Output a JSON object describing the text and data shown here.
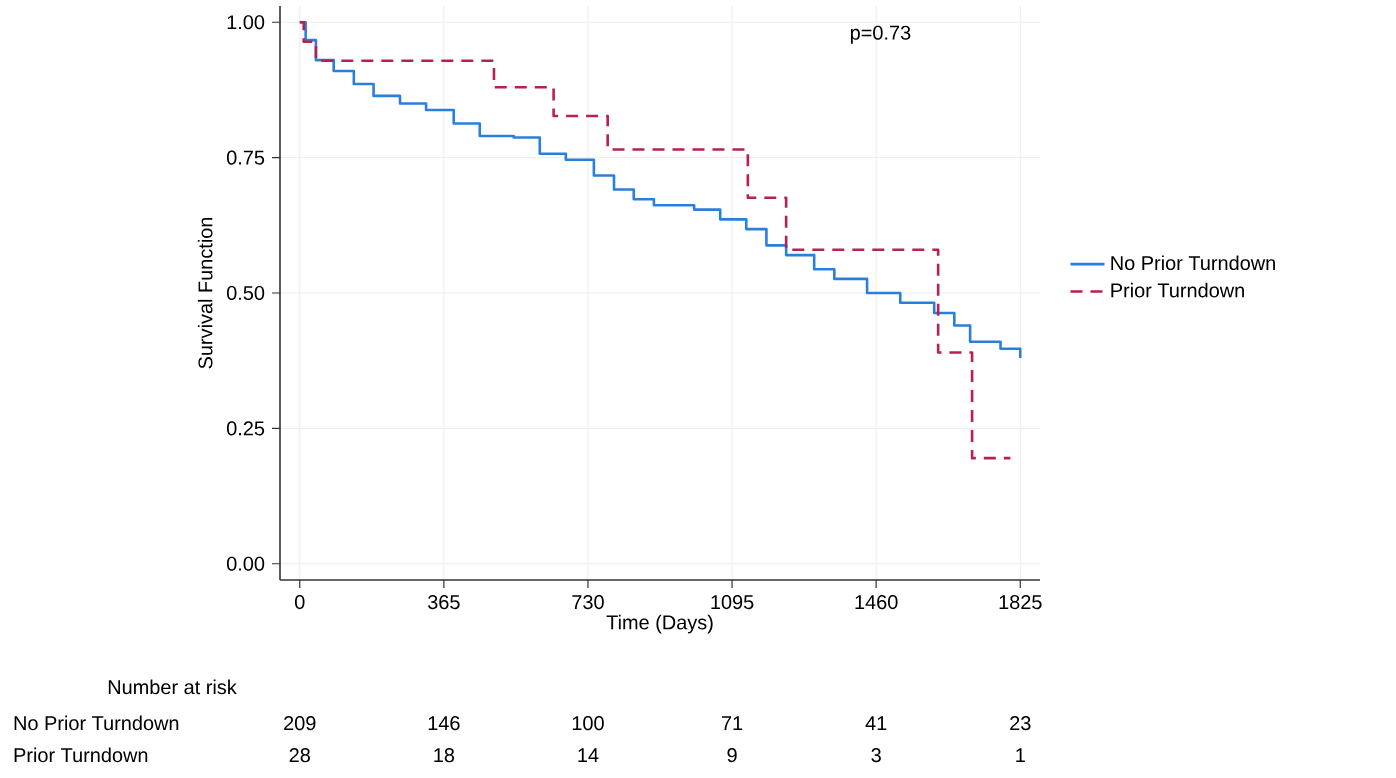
{
  "chart_data": {
    "type": "step",
    "xlabel": "Time (Days)",
    "ylabel": "Survival Function",
    "xlim": [
      -50,
      1875
    ],
    "ylim": [
      -0.03,
      1.03
    ],
    "xticks": [
      0,
      365,
      730,
      1095,
      1460,
      1825
    ],
    "yticks": [
      {
        "value": 0,
        "label": "0.00"
      },
      {
        "value": 0.25,
        "label": "0.25"
      },
      {
        "value": 0.5,
        "label": "0.50"
      },
      {
        "value": 0.75,
        "label": "0.75"
      },
      {
        "value": 1,
        "label": "1.00"
      }
    ],
    "grid": true,
    "legend": "right",
    "series": [
      {
        "name": "No Prior Turndown",
        "color": "#2a7fdc",
        "line_style": "solid",
        "x": [
          0,
          15,
          41,
          86,
          137,
          187,
          254,
          320,
          390,
          456,
          542,
          608,
          674,
          745,
          796,
          846,
          897,
          999,
          1065,
          1131,
          1182,
          1232,
          1303,
          1354,
          1437,
          1470,
          1521,
          1607,
          1658,
          1698,
          1765,
          1775,
          1825
        ],
        "values": [
          1.0,
          0.967,
          0.93,
          0.91,
          0.886,
          0.864,
          0.85,
          0.838,
          0.813,
          0.79,
          0.787,
          0.757,
          0.746,
          0.717,
          0.691,
          0.673,
          0.662,
          0.654,
          0.636,
          0.618,
          0.588,
          0.57,
          0.544,
          0.526,
          0.5,
          0.5,
          0.482,
          0.463,
          0.44,
          0.41,
          0.41,
          0.397,
          0.38
        ]
      },
      {
        "name": "Prior Turndown",
        "color": "#b8204f",
        "line_style": "dashed",
        "x": [
          0,
          10,
          41,
          492,
          643,
          780,
          1135,
          1232,
          1617,
          1703,
          1800
        ],
        "values": [
          1.0,
          0.964,
          0.929,
          0.88,
          0.827,
          0.765,
          0.676,
          0.58,
          0.39,
          0.195,
          0.195
        ]
      }
    ],
    "annotations": [
      "p=0.73",
      "Number at risk",
      "No Prior Turndown",
      "209",
      "146",
      "100",
      "71",
      "41",
      "23",
      "Prior Turndown",
      "28",
      "18",
      "14",
      "9",
      "3",
      "1"
    ]
  }
}
